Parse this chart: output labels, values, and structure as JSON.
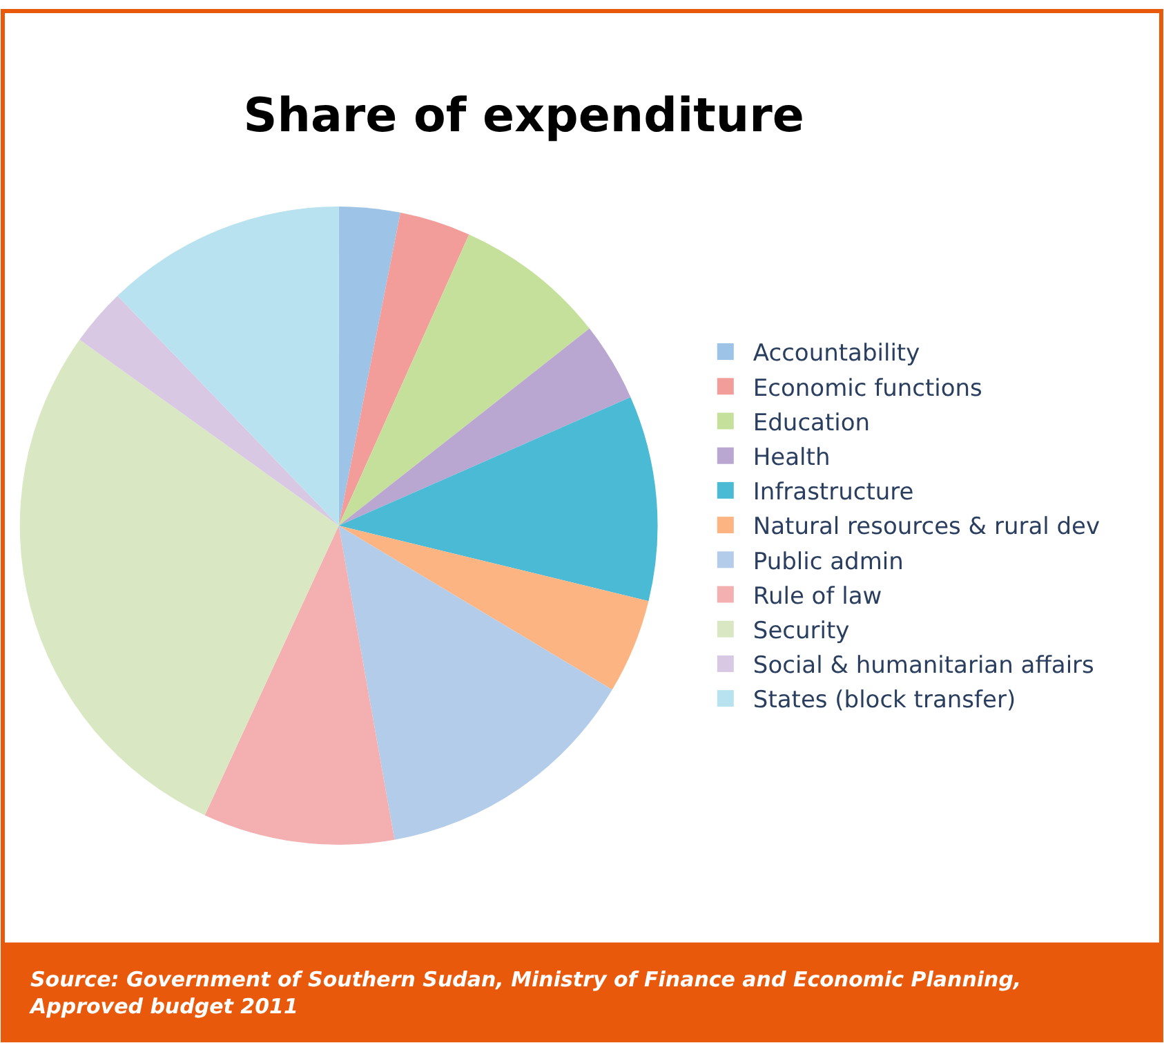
{
  "chart_data": {
    "type": "pie",
    "title": "Share of expenditure",
    "categories": [
      "Accountability",
      "Economic functions",
      "Education",
      "Health",
      "Infrastructure",
      "Natural resources & rural dev",
      "Public admin",
      "Rule of law",
      "Security",
      "Social & humanitarian affairs",
      "States (block transfer)"
    ],
    "values": [
      3.1,
      3.6,
      7.7,
      4.0,
      10.4,
      4.8,
      13.6,
      9.7,
      28.0,
      2.9,
      12.2
    ],
    "colors": [
      "#9dc3e6",
      "#f29d9a",
      "#c5e09b",
      "#b9a6d1",
      "#4bbad4",
      "#fbb482",
      "#b3cce9",
      "#f4b0b0",
      "#d9e8c2",
      "#d8c8e3",
      "#b8e2f0"
    ],
    "legend": "right",
    "annotations": [
      "Source: Government of Southern Sudan, Ministry of Finance and Economic Planning,\nApproved budget 2011"
    ]
  }
}
